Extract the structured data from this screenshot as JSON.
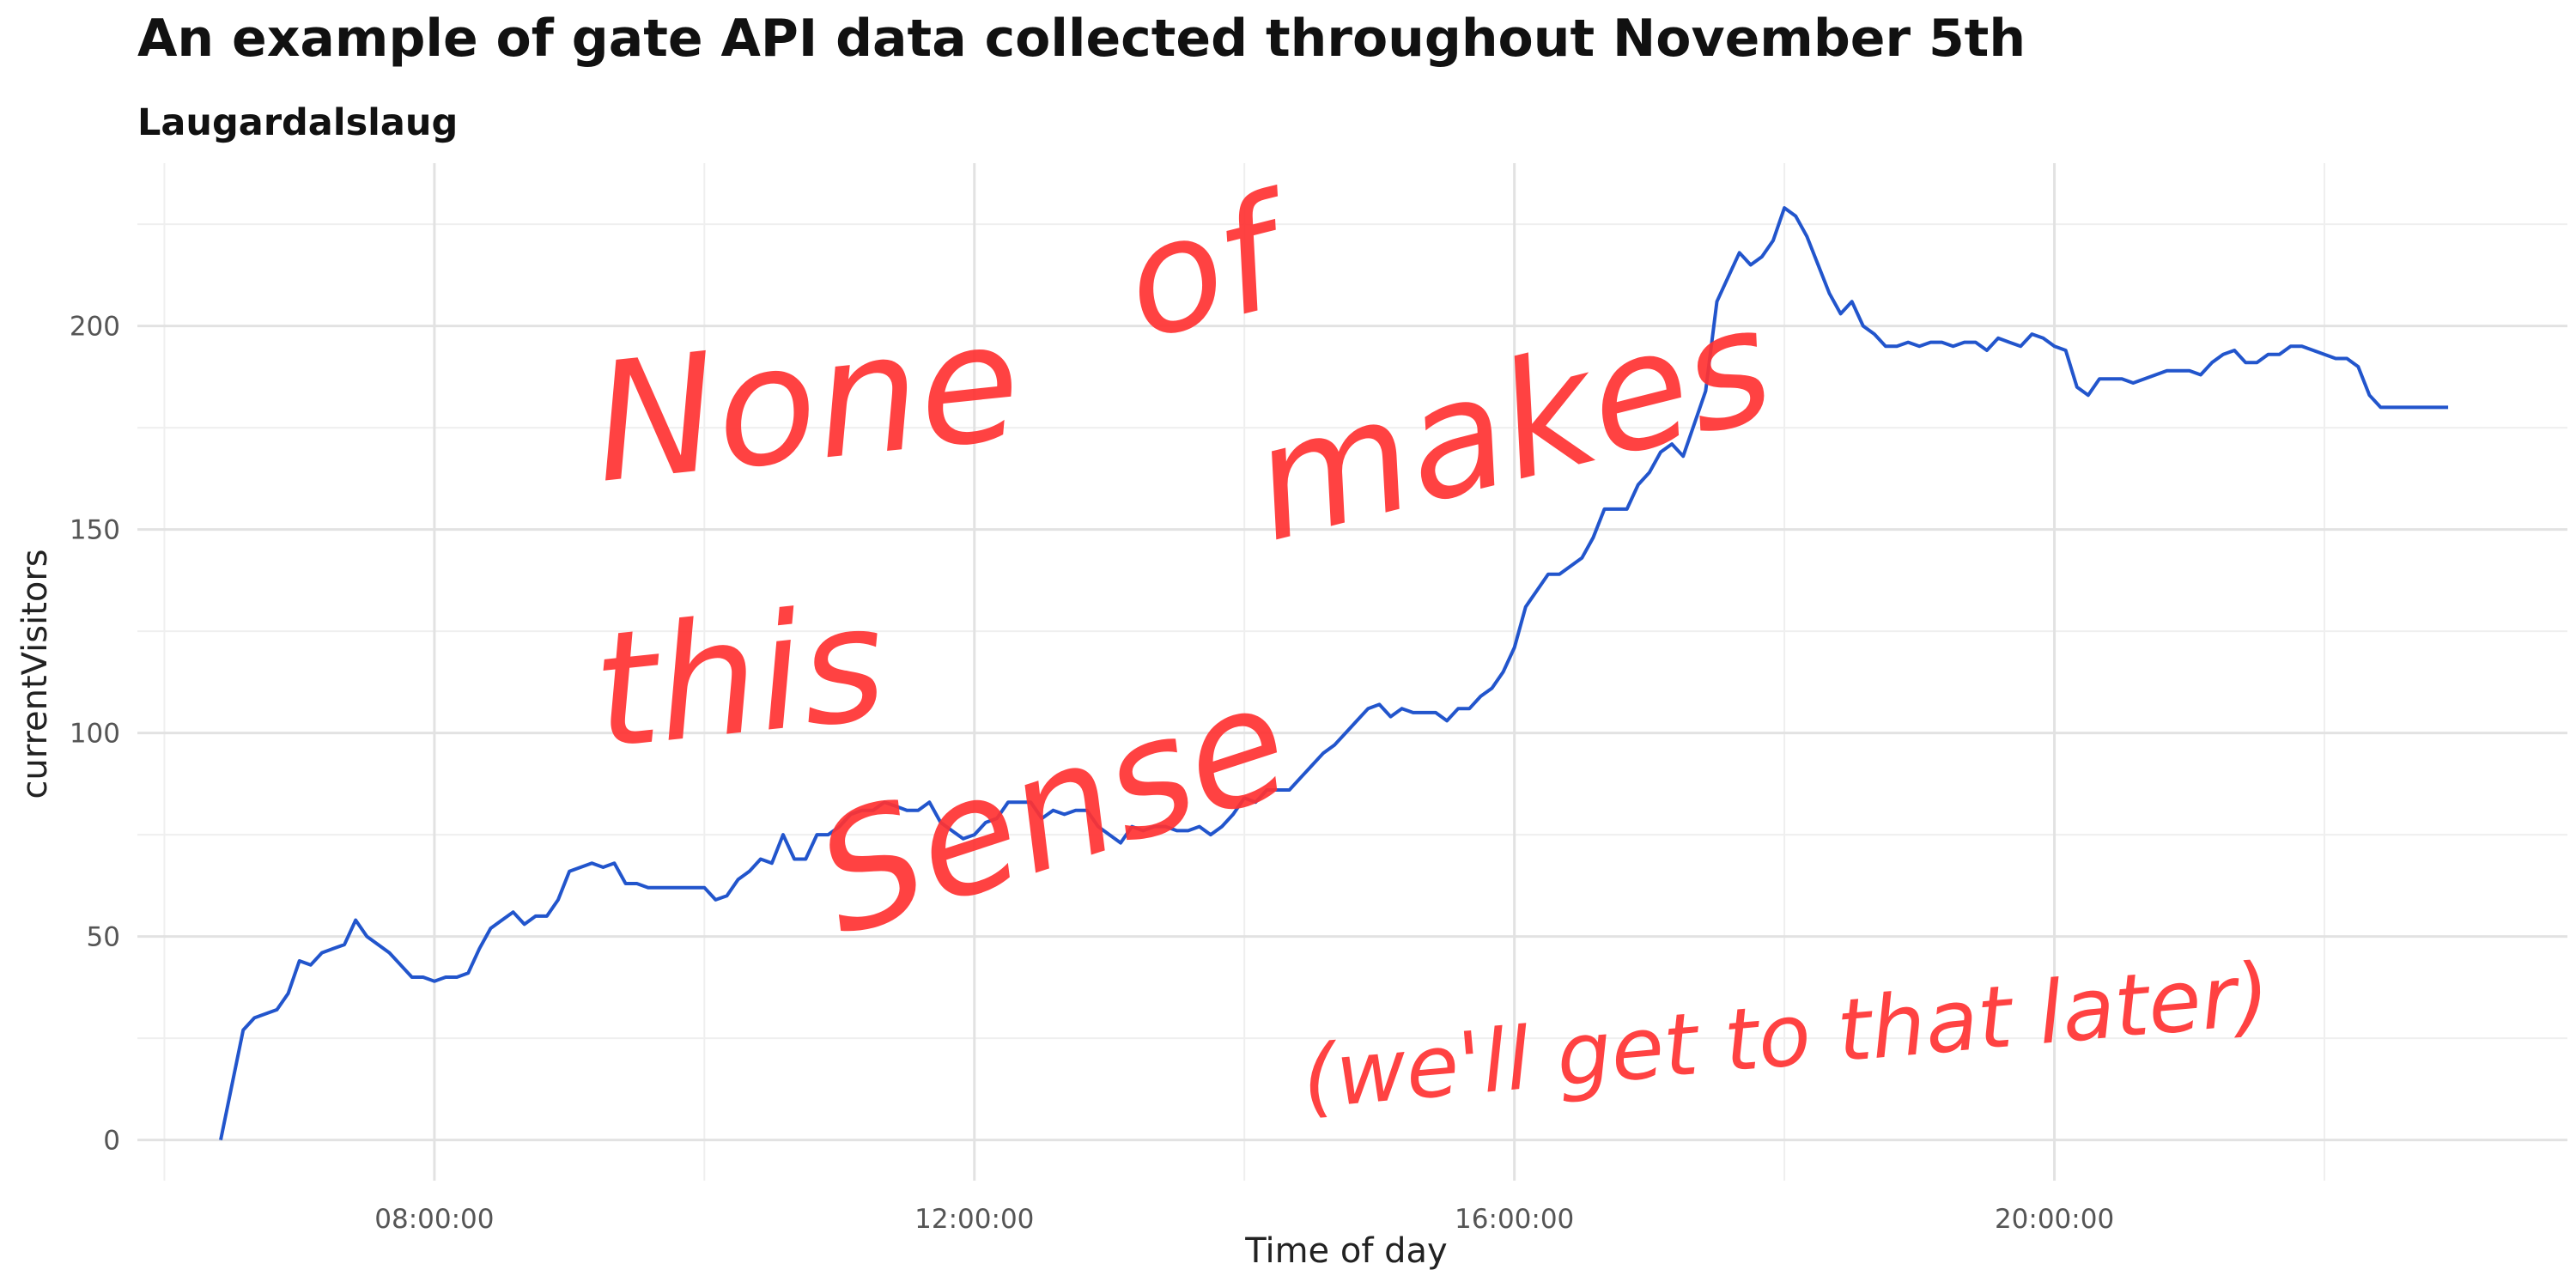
{
  "chart_data": {
    "type": "line",
    "title": "An example of gate API data collected throughout November 5th",
    "subtitle": "Laugardalslaug",
    "xlabel": "Time of day",
    "ylabel": "currentVisitors",
    "x_tick_labels": [
      "08:00:00",
      "12:00:00",
      "16:00:00",
      "20:00:00"
    ],
    "y_tick_labels": [
      "0",
      "50",
      "100",
      "150",
      "200"
    ],
    "xlim_hours": [
      5.8,
      23.8
    ],
    "ylim": [
      -10,
      240
    ],
    "grid": true,
    "line_color": "#2255cc",
    "annotation_color": "#ff3333",
    "annotations": [
      {
        "text": "None"
      },
      {
        "text": "of"
      },
      {
        "text": "this"
      },
      {
        "text": "makes"
      },
      {
        "text": "Sense"
      },
      {
        "text": "(we'll get to that later)"
      }
    ],
    "series": [
      {
        "x": [
          "06:25",
          "06:35",
          "06:40",
          "06:50",
          "06:55",
          "07:00",
          "07:05",
          "07:10",
          "07:15",
          "07:20",
          "07:25",
          "07:30",
          "07:35",
          "07:40",
          "07:45",
          "07:50",
          "07:55",
          "08:00",
          "08:05",
          "08:10",
          "08:15",
          "08:20",
          "08:25",
          "08:30",
          "08:35",
          "08:40",
          "08:45",
          "08:50",
          "08:55",
          "09:00",
          "09:05",
          "09:10",
          "09:15",
          "09:20",
          "09:25",
          "09:30",
          "09:35",
          "09:40",
          "09:45",
          "09:50",
          "09:55",
          "10:00",
          "10:05",
          "10:10",
          "10:15",
          "10:20",
          "10:25",
          "10:30",
          "10:35",
          "10:40",
          "10:45",
          "10:50",
          "10:55",
          "11:00",
          "11:05",
          "11:10",
          "11:15",
          "11:20",
          "11:25",
          "11:30",
          "11:35",
          "11:40",
          "11:45",
          "11:50",
          "11:55",
          "12:00",
          "12:05",
          "12:10",
          "12:15",
          "12:20",
          "12:25",
          "12:30",
          "12:35",
          "12:40",
          "12:45",
          "12:50",
          "12:55",
          "13:00",
          "13:05",
          "13:10",
          "13:15",
          "13:20",
          "13:25",
          "13:30",
          "13:35",
          "13:40",
          "13:45",
          "13:50",
          "13:55",
          "14:00",
          "14:05",
          "14:10",
          "14:15",
          "14:20",
          "14:25",
          "14:30",
          "14:35",
          "14:40",
          "14:45",
          "14:50",
          "14:55",
          "15:00",
          "15:05",
          "15:10",
          "15:15",
          "15:20",
          "15:25",
          "15:30",
          "15:35",
          "15:40",
          "15:45",
          "15:50",
          "15:55",
          "16:00",
          "16:05",
          "16:10",
          "16:15",
          "16:20",
          "16:25",
          "16:30",
          "16:35",
          "16:40",
          "16:45",
          "16:50",
          "16:55",
          "17:00",
          "17:05",
          "17:10",
          "17:15",
          "17:20",
          "17:25",
          "17:30",
          "17:35",
          "17:40",
          "17:45",
          "17:50",
          "17:55",
          "18:00",
          "18:05",
          "18:10",
          "18:15",
          "18:20",
          "18:25",
          "18:30",
          "18:35",
          "18:40",
          "18:45",
          "18:50",
          "18:55",
          "19:00",
          "19:05",
          "19:10",
          "19:15",
          "19:20",
          "19:25",
          "19:30",
          "19:35",
          "19:40",
          "19:45",
          "19:50",
          "19:55",
          "20:00",
          "20:05",
          "20:10",
          "20:15",
          "20:20",
          "20:25",
          "20:30",
          "20:35",
          "20:40",
          "20:45",
          "20:50",
          "20:55",
          "21:00",
          "21:05",
          "21:10",
          "21:15",
          "21:20",
          "21:25",
          "21:30",
          "21:35",
          "21:40",
          "21:45",
          "21:50",
          "21:55",
          "22:00",
          "22:05",
          "22:10",
          "22:15",
          "22:20",
          "22:25",
          "22:30",
          "22:35",
          "22:40",
          "22:45",
          "22:50",
          "22:55"
        ],
        "values": [
          0,
          27,
          30,
          32,
          36,
          44,
          43,
          46,
          47,
          48,
          54,
          50,
          48,
          46,
          43,
          40,
          40,
          39,
          40,
          40,
          41,
          47,
          52,
          54,
          56,
          53,
          55,
          55,
          59,
          66,
          67,
          68,
          67,
          68,
          63,
          63,
          62,
          62,
          62,
          62,
          62,
          62,
          59,
          60,
          64,
          66,
          69,
          68,
          75,
          69,
          69,
          75,
          75,
          77,
          80,
          81,
          81,
          83,
          82,
          81,
          81,
          83,
          78,
          76,
          74,
          75,
          78,
          79,
          83,
          83,
          83,
          79,
          81,
          80,
          81,
          81,
          77,
          75,
          73,
          77,
          76,
          77,
          77,
          76,
          76,
          77,
          75,
          77,
          80,
          84,
          83,
          86,
          86,
          86,
          89,
          92,
          95,
          97,
          100,
          103,
          106,
          107,
          104,
          106,
          105,
          105,
          105,
          103,
          106,
          106,
          109,
          111,
          115,
          121,
          131,
          135,
          139,
          139,
          141,
          143,
          148,
          155,
          155,
          155,
          161,
          164,
          169,
          171,
          168,
          176,
          184,
          206,
          212,
          218,
          215,
          217,
          221,
          229,
          227,
          222,
          215,
          208,
          203,
          206,
          200,
          198,
          195,
          195,
          196,
          195,
          196,
          196,
          195,
          196,
          196,
          194,
          197,
          196,
          195,
          198,
          197,
          195,
          194,
          185,
          183,
          187,
          187,
          187,
          186,
          187,
          188,
          189,
          189,
          189,
          188,
          191,
          193,
          194,
          191,
          191,
          193,
          193,
          195,
          195,
          194,
          193,
          192,
          192,
          190,
          183,
          180,
          180,
          180,
          180,
          180,
          180,
          180
        ]
      }
    ]
  }
}
